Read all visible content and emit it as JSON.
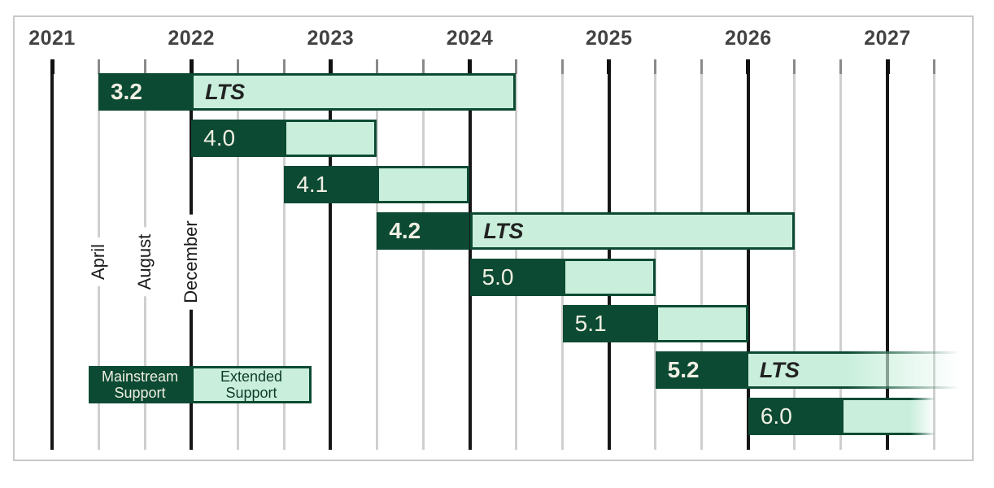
{
  "legend": {
    "mainstream": [
      "Mainstream",
      "Support"
    ],
    "extended": [
      "Extended",
      "Support"
    ]
  },
  "colors": {
    "mainstream_dark_green": "#0c4a33",
    "extended_light_green": "#c9efdc",
    "bar_label_cream": "#f0efe3",
    "year_line_black": "#161616",
    "minor_line_gray": "#cfcfcf",
    "frame_border_gray": "#c9c9c9"
  },
  "chart_data": {
    "type": "bar",
    "title": "",
    "xlabel": "",
    "ylabel": "",
    "x_axis": {
      "year_ticks": [
        "2021",
        "2022",
        "2023",
        "2024",
        "2025",
        "2026",
        "2027"
      ],
      "minor_month_labels": [
        "April",
        "August",
        "December"
      ],
      "minor_label_positions": [
        2021.333,
        2021.667,
        2022.0
      ],
      "xlim": [
        2020.97,
        2027.62
      ],
      "grid": true
    },
    "legend_entries": [
      "Mainstream Support",
      "Extended Support"
    ],
    "series": [
      {
        "version": "3.2",
        "lts": true,
        "release": "April 2021",
        "mainstream_until": "December 2021",
        "extended_until": "April 2024",
        "t_start": 2021.333,
        "t_mid": 2022.0,
        "t_end": 2024.333,
        "fade": "none"
      },
      {
        "version": "4.0",
        "lts": false,
        "release": "December 2021",
        "mainstream_until": "August 2022",
        "extended_until": "April 2023",
        "t_start": 2022.0,
        "t_mid": 2022.667,
        "t_end": 2023.333,
        "fade": "none"
      },
      {
        "version": "4.1",
        "lts": false,
        "release": "August 2022",
        "mainstream_until": "April 2023",
        "extended_until": "December 2023",
        "t_start": 2022.667,
        "t_mid": 2023.333,
        "t_end": 2024.0,
        "fade": "none"
      },
      {
        "version": "4.2",
        "lts": true,
        "release": "April 2023",
        "mainstream_until": "December 2023",
        "extended_until": "April 2026",
        "t_start": 2023.333,
        "t_mid": 2024.0,
        "t_end": 2026.333,
        "fade": "none"
      },
      {
        "version": "5.0",
        "lts": false,
        "release": "December 2023",
        "mainstream_until": "August 2024",
        "extended_until": "April 2025",
        "t_start": 2024.0,
        "t_mid": 2024.667,
        "t_end": 2025.333,
        "fade": "none"
      },
      {
        "version": "5.1",
        "lts": false,
        "release": "August 2024",
        "mainstream_until": "April 2025",
        "extended_until": "December 2025",
        "t_start": 2024.667,
        "t_mid": 2025.333,
        "t_end": 2026.0,
        "fade": "none"
      },
      {
        "version": "5.2",
        "lts": true,
        "release": "April 2025",
        "mainstream_until": "December 2025",
        "extended_until": "",
        "t_start": 2025.333,
        "t_mid": 2026.0,
        "t_end": 2027.58,
        "fade": "open-right"
      },
      {
        "version": "6.0",
        "lts": false,
        "release": "December 2025",
        "mainstream_until": "August 2026",
        "extended_until": "April 2027",
        "t_start": 2026.0,
        "t_mid": 2026.667,
        "t_end": 2027.35,
        "fade": "soft-right"
      }
    ],
    "lts_text": "LTS"
  }
}
